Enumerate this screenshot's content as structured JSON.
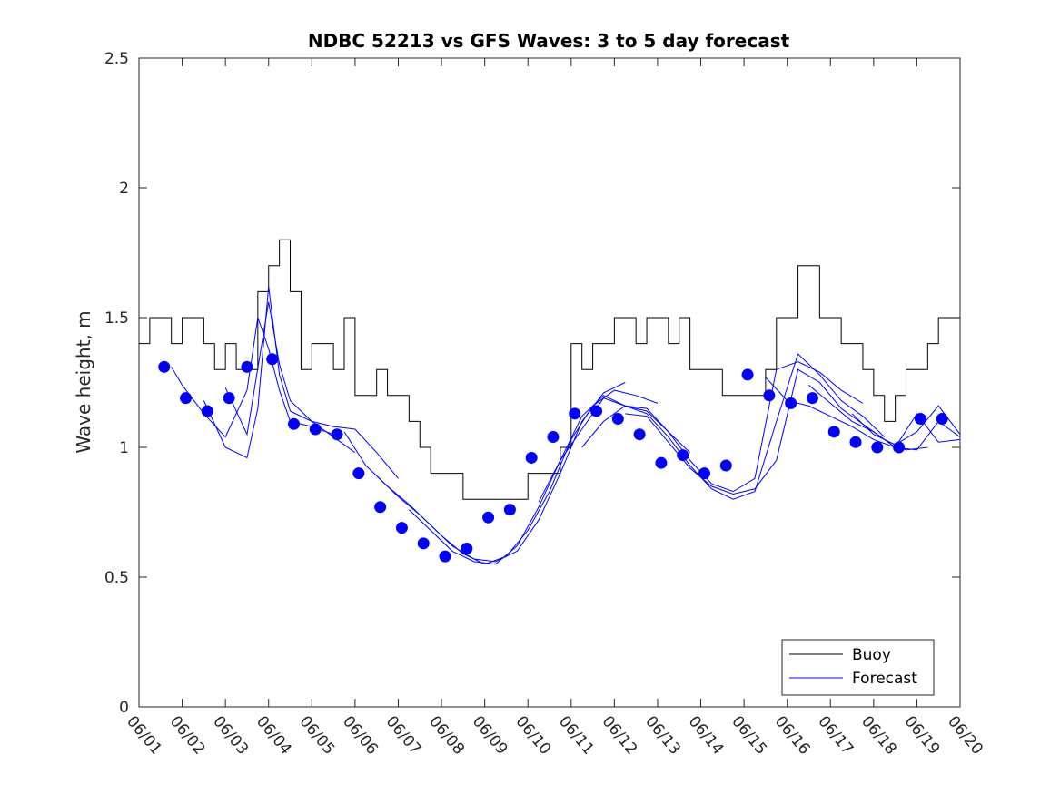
{
  "chart_data": {
    "type": "line",
    "title": "NDBC 52213 vs GFS Waves: 3 to 5 day forecast",
    "xlabel": "",
    "ylabel": "Wave height, m",
    "ylim": [
      0,
      2.5
    ],
    "yticks": [
      0,
      0.5,
      1,
      1.5,
      2,
      2.5
    ],
    "ytick_labels": [
      "0",
      "0.5",
      "1",
      "1.5",
      "2",
      "2.5"
    ],
    "xlim": [
      "06/01",
      "06/20"
    ],
    "xtick_labels": [
      "06/01",
      "06/02",
      "06/03",
      "06/04",
      "06/05",
      "06/06",
      "06/07",
      "06/08",
      "06/09",
      "06/10",
      "06/11",
      "06/12",
      "06/13",
      "06/14",
      "06/15",
      "06/16",
      "06/17",
      "06/18",
      "06/19",
      "06/20"
    ],
    "legend": {
      "position": "bottom-right",
      "entries": [
        "Buoy",
        "Forecast"
      ]
    },
    "colors": {
      "buoy": "#000000",
      "forecast": "#0000ff",
      "markers": "#0000ff"
    },
    "series": [
      {
        "name": "Buoy",
        "style": "step",
        "x": [
          "06/01 00:00",
          "06/01 06:00",
          "06/01 12:00",
          "06/01 18:00",
          "06/02 00:00",
          "06/02 06:00",
          "06/02 12:00",
          "06/02 18:00",
          "06/03 00:00",
          "06/03 06:00",
          "06/03 12:00",
          "06/03 18:00",
          "06/04 00:00",
          "06/04 06:00",
          "06/04 12:00",
          "06/04 18:00",
          "06/05 00:00",
          "06/05 06:00",
          "06/05 12:00",
          "06/05 18:00",
          "06/06 00:00",
          "06/06 06:00",
          "06/06 12:00",
          "06/06 18:00",
          "06/07 00:00",
          "06/07 06:00",
          "06/07 12:00",
          "06/07 18:00",
          "06/08 00:00",
          "06/08 06:00",
          "06/08 12:00",
          "06/08 18:00",
          "06/09 00:00",
          "06/09 06:00",
          "06/09 12:00",
          "06/09 18:00",
          "06/10 00:00",
          "06/10 06:00",
          "06/10 12:00",
          "06/10 18:00",
          "06/11 00:00",
          "06/11 06:00",
          "06/11 12:00",
          "06/11 18:00",
          "06/12 00:00",
          "06/12 06:00",
          "06/12 12:00",
          "06/12 18:00",
          "06/13 00:00",
          "06/13 06:00",
          "06/13 12:00",
          "06/13 18:00",
          "06/14 00:00",
          "06/14 06:00",
          "06/14 12:00",
          "06/14 18:00",
          "06/15 00:00",
          "06/15 06:00",
          "06/15 12:00",
          "06/15 18:00",
          "06/16 00:00",
          "06/16 06:00",
          "06/16 12:00",
          "06/16 18:00",
          "06/17 00:00",
          "06/17 06:00",
          "06/17 12:00",
          "06/17 18:00",
          "06/18 00:00",
          "06/18 06:00",
          "06/18 12:00",
          "06/18 18:00",
          "06/19 00:00",
          "06/19 06:00",
          "06/19 12:00",
          "06/19 18:00"
        ],
        "values": [
          1.4,
          1.5,
          1.5,
          1.4,
          1.5,
          1.5,
          1.4,
          1.3,
          1.4,
          1.3,
          1.3,
          1.6,
          1.7,
          1.8,
          1.6,
          1.3,
          1.4,
          1.4,
          1.3,
          1.5,
          1.2,
          1.2,
          1.3,
          1.2,
          1.2,
          1.1,
          1.0,
          0.9,
          0.9,
          0.9,
          0.8,
          0.8,
          0.8,
          0.8,
          0.8,
          0.8,
          0.9,
          0.9,
          0.9,
          1.0,
          1.4,
          1.3,
          1.4,
          1.4,
          1.5,
          1.5,
          1.4,
          1.5,
          1.5,
          1.4,
          1.5,
          1.3,
          1.3,
          1.3,
          1.2,
          1.2,
          1.2,
          1.2,
          1.3,
          1.5,
          1.5,
          1.7,
          1.7,
          1.5,
          1.5,
          1.4,
          1.4,
          1.3,
          1.2,
          1.1,
          1.2,
          1.3,
          1.3,
          1.4,
          1.5,
          1.5
        ]
      },
      {
        "name": "Forecast",
        "style": "line",
        "runs": [
          {
            "x": [
              "06/01 18:00",
              "06/02 00:00",
              "06/02 12:00",
              "06/03 00:00",
              "06/03 12:00",
              "06/03 18:00",
              "06/04 00:00",
              "06/04 06:00",
              "06/04 12:00",
              "06/05 00:00",
              "06/05 12:00"
            ],
            "values": [
              1.31,
              1.24,
              1.13,
              1.04,
              1.22,
              1.5,
              1.38,
              1.22,
              1.1,
              1.08,
              1.05
            ]
          },
          {
            "x": [
              "06/02 12:00",
              "06/03 00:00",
              "06/03 12:00",
              "06/03 18:00",
              "06/04 00:00",
              "06/04 06:00",
              "06/04 12:00",
              "06/05 00:00",
              "06/05 12:00",
              "06/06 00:00"
            ],
            "values": [
              1.18,
              1.0,
              0.96,
              1.15,
              1.62,
              1.28,
              1.14,
              1.1,
              1.04,
              0.98
            ]
          },
          {
            "x": [
              "06/03 00:00",
              "06/03 12:00",
              "06/04 00:00",
              "06/04 06:00",
              "06/04 12:00",
              "06/05 00:00",
              "06/05 12:00",
              "06/06 00:00",
              "06/06 12:00",
              "06/07 00:00"
            ],
            "values": [
              1.23,
              1.05,
              1.56,
              1.32,
              1.18,
              1.1,
              1.08,
              1.07,
              0.98,
              0.88
            ]
          },
          {
            "x": [
              "06/05 18:00",
              "06/06 06:00",
              "06/06 18:00",
              "06/07 06:00",
              "06/07 18:00",
              "06/08 06:00",
              "06/08 18:00",
              "06/09 06:00",
              "06/09 18:00",
              "06/10 06:00",
              "06/10 18:00",
              "06/11 06:00",
              "06/11 18:00",
              "06/12 06:00"
            ],
            "values": [
              1.06,
              0.93,
              0.85,
              0.78,
              0.7,
              0.62,
              0.57,
              0.56,
              0.6,
              0.72,
              0.9,
              1.1,
              1.21,
              1.25
            ]
          },
          {
            "x": [
              "06/06 12:00",
              "06/07 00:00",
              "06/07 12:00",
              "06/08 00:00",
              "06/08 12:00",
              "06/09 00:00",
              "06/09 12:00",
              "06/10 00:00",
              "06/10 12:00",
              "06/11 00:00",
              "06/11 12:00",
              "06/12 00:00",
              "06/12 12:00",
              "06/13 00:00"
            ],
            "values": [
              0.89,
              0.81,
              0.74,
              0.66,
              0.59,
              0.55,
              0.58,
              0.68,
              0.83,
              1.03,
              1.16,
              1.22,
              1.2,
              1.17
            ]
          },
          {
            "x": [
              "06/07 06:00",
              "06/07 18:00",
              "06/08 06:00",
              "06/08 18:00",
              "06/09 06:00",
              "06/09 18:00",
              "06/10 06:00",
              "06/10 18:00",
              "06/11 06:00",
              "06/11 18:00",
              "06/12 06:00",
              "06/12 18:00",
              "06/13 06:00",
              "06/13 18:00"
            ],
            "values": [
              0.76,
              0.68,
              0.6,
              0.56,
              0.55,
              0.62,
              0.77,
              0.95,
              1.07,
              1.19,
              1.16,
              1.14,
              1.06,
              0.98
            ]
          },
          {
            "x": [
              "06/10 06:00",
              "06/10 18:00",
              "06/11 06:00",
              "06/11 18:00",
              "06/12 06:00",
              "06/12 18:00",
              "06/13 06:00",
              "06/13 18:00",
              "06/14 06:00",
              "06/14 18:00",
              "06/15 06:00",
              "06/15 18:00",
              "06/16 06:00",
              "06/16 18:00",
              "06/17 06:00",
              "06/17 18:00"
            ],
            "values": [
              0.79,
              0.95,
              1.12,
              1.2,
              1.16,
              1.15,
              1.06,
              0.95,
              0.86,
              0.83,
              0.88,
              1.3,
              1.33,
              1.29,
              1.22,
              1.17
            ]
          },
          {
            "x": [
              "06/11 06:00",
              "06/11 18:00",
              "06/12 06:00",
              "06/12 18:00",
              "06/13 06:00",
              "06/13 18:00",
              "06/14 06:00",
              "06/14 18:00",
              "06/15 06:00",
              "06/15 18:00",
              "06/16 06:00",
              "06/16 18:00",
              "06/17 06:00",
              "06/17 18:00",
              "06/18 06:00"
            ],
            "values": [
              1.0,
              1.1,
              1.16,
              1.13,
              1.04,
              0.93,
              0.84,
              0.8,
              0.83,
              1.1,
              1.36,
              1.28,
              1.18,
              1.12,
              1.04
            ]
          },
          {
            "x": [
              "06/12 06:00",
              "06/12 18:00",
              "06/13 06:00",
              "06/13 18:00",
              "06/14 06:00",
              "06/14 18:00",
              "06/15 06:00",
              "06/15 18:00",
              "06/16 06:00",
              "06/16 18:00",
              "06/17 06:00",
              "06/17 18:00",
              "06/18 06:00",
              "06/18 18:00",
              "06/19 06:00"
            ],
            "values": [
              1.13,
              1.12,
              1.02,
              0.92,
              0.85,
              0.82,
              0.84,
              0.95,
              1.3,
              1.25,
              1.15,
              1.09,
              1.03,
              0.99,
              1.0
            ]
          },
          {
            "x": [
              "06/15 12:00",
              "06/16 00:00",
              "06/16 12:00",
              "06/17 00:00",
              "06/17 12:00",
              "06/18 00:00",
              "06/18 12:00",
              "06/19 00:00",
              "06/19 12:00",
              "06/20 00:00"
            ],
            "values": [
              1.27,
              1.18,
              1.16,
              1.12,
              1.08,
              1.03,
              1.0,
              0.99,
              1.1,
              1.04
            ]
          },
          {
            "x": [
              "06/16 12:00",
              "06/17 00:00",
              "06/17 12:00",
              "06/18 00:00",
              "06/18 12:00",
              "06/19 00:00",
              "06/19 12:00",
              "06/20 00:00"
            ],
            "values": [
              1.24,
              1.17,
              1.1,
              1.06,
              1.0,
              1.13,
              1.02,
              1.03
            ]
          },
          {
            "x": [
              "06/17 12:00",
              "06/18 00:00",
              "06/18 12:00",
              "06/19 00:00",
              "06/19 12:00",
              "06/20 00:00"
            ],
            "values": [
              1.13,
              1.05,
              1.01,
              1.06,
              1.16,
              1.05
            ]
          }
        ]
      },
      {
        "name": "",
        "style": "markers",
        "x": [
          "06/01 14:00",
          "06/02 02:00",
          "06/02 14:00",
          "06/03 02:00",
          "06/03 12:00",
          "06/04 02:00",
          "06/04 14:00",
          "06/05 02:00",
          "06/05 14:00",
          "06/06 02:00",
          "06/06 14:00",
          "06/07 02:00",
          "06/07 14:00",
          "06/08 02:00",
          "06/08 14:00",
          "06/09 02:00",
          "06/09 14:00",
          "06/10 02:00",
          "06/10 14:00",
          "06/11 02:00",
          "06/11 14:00",
          "06/12 02:00",
          "06/12 14:00",
          "06/13 02:00",
          "06/13 14:00",
          "06/14 02:00",
          "06/14 14:00",
          "06/15 02:00",
          "06/15 14:00",
          "06/16 02:00",
          "06/16 14:00",
          "06/17 02:00",
          "06/17 14:00",
          "06/18 02:00",
          "06/18 14:00",
          "06/19 02:00",
          "06/19 14:00"
        ],
        "values": [
          1.31,
          1.19,
          1.14,
          1.19,
          1.31,
          1.34,
          1.09,
          1.07,
          1.05,
          0.9,
          0.77,
          0.69,
          0.63,
          0.58,
          0.61,
          0.73,
          0.76,
          0.96,
          1.04,
          1.13,
          1.14,
          1.11,
          1.05,
          0.94,
          0.97,
          0.9,
          0.93,
          1.28,
          1.2,
          1.17,
          1.19,
          1.06,
          1.02,
          1.0,
          1.0,
          1.11,
          1.11
        ]
      }
    ]
  }
}
